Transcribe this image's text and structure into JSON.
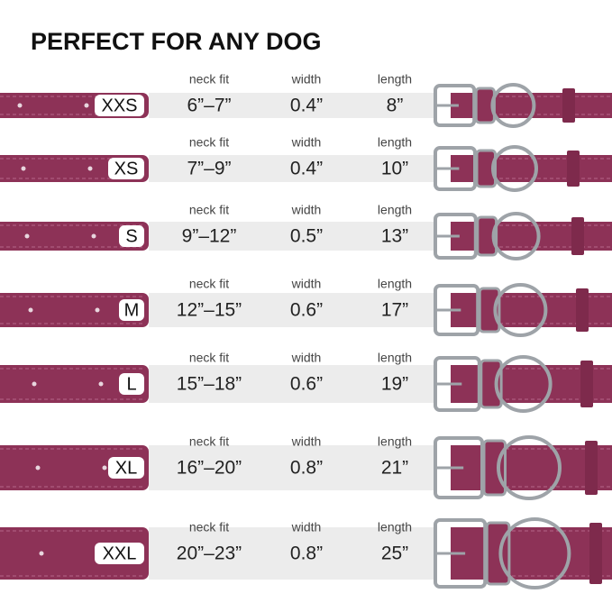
{
  "title": "PERFECT FOR ANY DOG",
  "rows": [
    {
      "size": "XXS",
      "neck_fit_label": "neck fit",
      "neck_fit": "6”–7”",
      "width_label": "width",
      "width": "0.4”",
      "length_label": "length",
      "length": "8”"
    },
    {
      "size": "XS",
      "neck_fit_label": "neck fit",
      "neck_fit": "7”–9”",
      "width_label": "width",
      "width": "0.4”",
      "length_label": "length",
      "length": "10”"
    },
    {
      "size": "S",
      "neck_fit_label": "neck fit",
      "neck_fit": "9”–12”",
      "width_label": "width",
      "width": "0.5”",
      "length_label": "length",
      "length": "13”"
    },
    {
      "size": "M",
      "neck_fit_label": "neck fit",
      "neck_fit": "12”–15”",
      "width_label": "width",
      "width": "0.6”",
      "length_label": "length",
      "length": "17”"
    },
    {
      "size": "L",
      "neck_fit_label": "neck fit",
      "neck_fit": "15”–18”",
      "width_label": "width",
      "width": "0.6”",
      "length_label": "length",
      "length": "19”"
    },
    {
      "size": "XL",
      "neck_fit_label": "neck fit",
      "neck_fit": "16”–20”",
      "width_label": "width",
      "width": "0.8”",
      "length_label": "length",
      "length": "21”"
    },
    {
      "size": "XXL",
      "neck_fit_label": "neck fit",
      "neck_fit": "20”–23”",
      "width_label": "width",
      "width": "0.8”",
      "length_label": "length",
      "length": "25”"
    }
  ]
}
